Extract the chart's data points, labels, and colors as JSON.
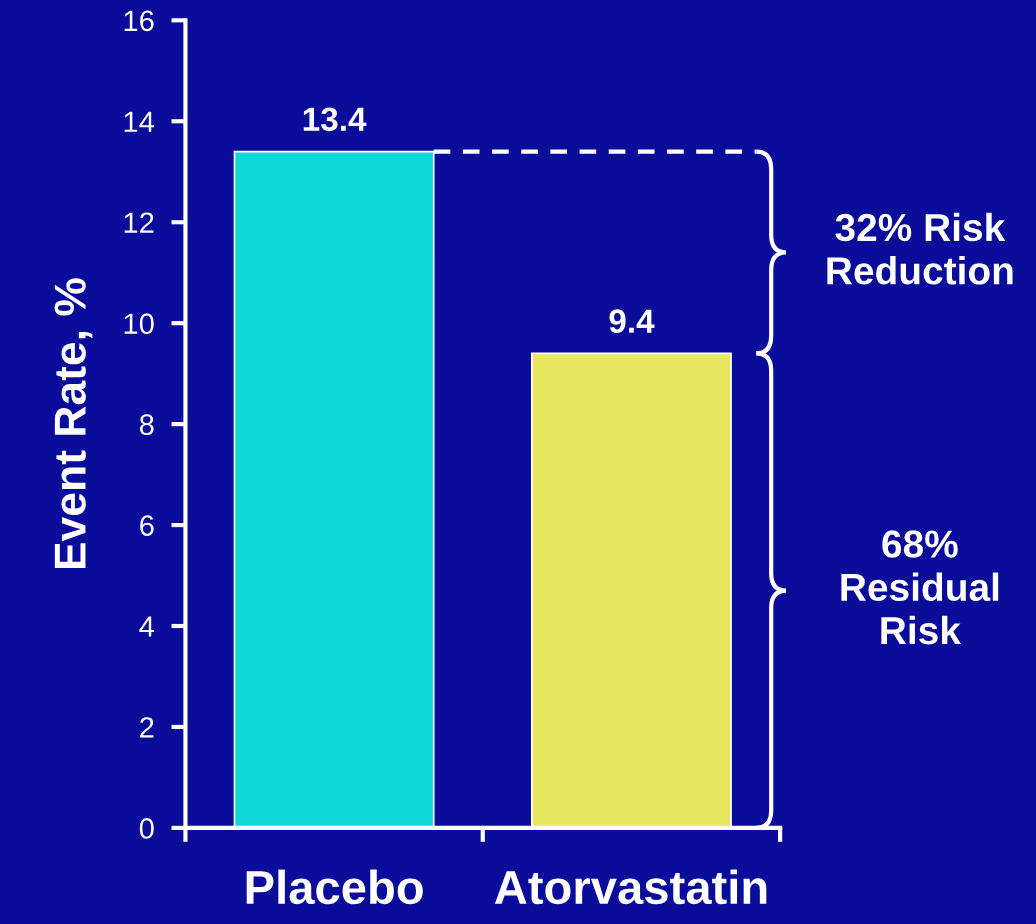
{
  "chart_data": {
    "type": "bar",
    "ylabel": "Event Rate, %",
    "categories": [
      "Placebo",
      "Atorvastatin"
    ],
    "values": [
      13.4,
      9.4
    ],
    "colors": [
      "#10d8d8",
      "#e8e860"
    ],
    "data_labels": true,
    "ylim": [
      0,
      16
    ],
    "yticks": [
      0,
      2,
      4,
      6,
      8,
      10,
      12,
      14,
      16
    ],
    "grid": false,
    "legend": false,
    "ref_lines": [
      {
        "axis": "y",
        "value": 13.4,
        "color": "#ffffff",
        "line_style": "dashed"
      }
    ],
    "annotations": [
      "32% Risk\nReduction",
      "68%\nResidual\nRisk"
    ]
  }
}
